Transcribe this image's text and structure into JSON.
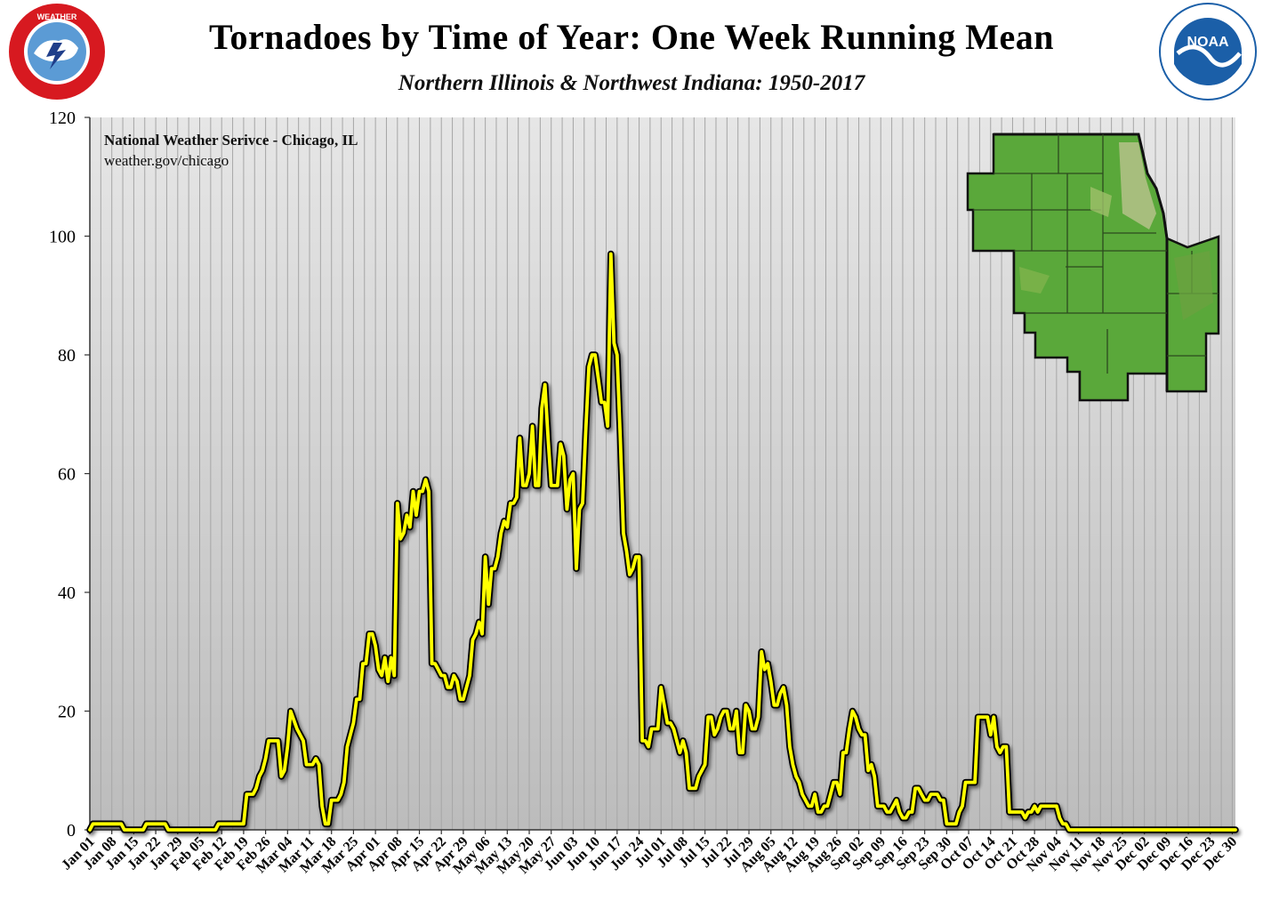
{
  "header": {
    "title": "Tornadoes by Time of Year:  One Week Running Mean",
    "subtitle": "Northern Illinois & Northwest Indiana:  1950-2017"
  },
  "logos": {
    "left": {
      "text": "NATIONAL WEATHER SERVICE",
      "icon": "nws-logo-icon"
    },
    "right": {
      "text": "NOAA",
      "ring_text": "NATIONAL OCEANIC AND ATMOSPHERIC ADMINISTRATION · U.S. DEPARTMENT OF COMMERCE",
      "icon": "noaa-logo-icon"
    }
  },
  "credit": {
    "line1": "National Weather Serivce - Chicago, IL",
    "line2": "weather.gov/chicago"
  },
  "inset_map": {
    "icon": "northern-illinois-northwest-indiana-map-icon"
  },
  "colors": {
    "line": "#ffff00",
    "line_outline": "#000000",
    "plot_bg_light": "#e4e4e4",
    "plot_bg_dark": "#bdbdbd",
    "gridline": "#a6a6a6"
  },
  "chart_data": {
    "type": "line",
    "title": "Tornadoes by Time of Year:  One Week Running Mean",
    "subtitle": "Northern Illinois & Northwest Indiana:  1950-2017",
    "xlabel": "",
    "ylabel": "",
    "ylim": [
      0,
      120
    ],
    "yticks": [
      0,
      20,
      40,
      60,
      80,
      100,
      120
    ],
    "xlim": [
      1,
      366
    ],
    "grid": true,
    "x_tick_labels": [
      "Jan 01",
      "Jan 08",
      "Jan 15",
      "Jan 22",
      "Jan 29",
      "Feb 05",
      "Feb 12",
      "Feb 19",
      "Feb 26",
      "Mar 04",
      "Mar 11",
      "Mar 18",
      "Mar 25",
      "Apr 01",
      "Apr 08",
      "Apr 15",
      "Apr 22",
      "Apr 29",
      "May 06",
      "May 13",
      "May 20",
      "May 27",
      "Jun 03",
      "Jun 10",
      "Jun 17",
      "Jun 24",
      "Jul 01",
      "Jul 08",
      "Jul 15",
      "Jul 22",
      "Jul 29",
      "Aug 05",
      "Aug 12",
      "Aug 19",
      "Aug 26",
      "Sep 02",
      "Sep 09",
      "Sep 16",
      "Sep 23",
      "Sep 30",
      "Oct 07",
      "Oct 14",
      "Oct 21",
      "Oct 28",
      "Nov 04",
      "Nov 11",
      "Nov 18",
      "Nov 25",
      "Dec 02",
      "Dec 09",
      "Dec 16",
      "Dec 23",
      "Dec 30"
    ],
    "x_tick_days": [
      1,
      8,
      15,
      22,
      29,
      36,
      43,
      50,
      57,
      64,
      71,
      78,
      85,
      92,
      99,
      106,
      113,
      120,
      127,
      134,
      141,
      148,
      155,
      162,
      169,
      176,
      183,
      190,
      197,
      204,
      211,
      218,
      225,
      232,
      239,
      246,
      253,
      260,
      267,
      274,
      281,
      288,
      295,
      302,
      309,
      316,
      323,
      330,
      337,
      344,
      351,
      358,
      365
    ],
    "series": [
      {
        "points": [
          [
            1,
            0
          ],
          [
            2,
            1
          ],
          [
            7,
            1
          ],
          [
            11,
            1
          ],
          [
            12,
            0
          ],
          [
            18,
            0
          ],
          [
            19,
            1
          ],
          [
            25,
            1
          ],
          [
            26,
            0
          ],
          [
            35,
            0
          ],
          [
            36,
            0
          ],
          [
            41,
            0
          ],
          [
            42,
            1
          ],
          [
            49,
            1
          ],
          [
            50,
            1
          ],
          [
            51,
            6
          ],
          [
            53,
            6
          ],
          [
            54,
            7
          ],
          [
            55,
            9
          ],
          [
            56,
            10
          ],
          [
            57,
            12
          ],
          [
            58,
            15
          ],
          [
            61,
            15
          ],
          [
            62,
            9
          ],
          [
            63,
            10
          ],
          [
            64,
            14
          ],
          [
            65,
            20
          ],
          [
            67,
            17
          ],
          [
            69,
            15
          ],
          [
            70,
            11
          ],
          [
            72,
            11
          ],
          [
            73,
            12
          ],
          [
            74,
            11
          ],
          [
            75,
            4
          ],
          [
            76,
            1
          ],
          [
            77,
            1
          ],
          [
            78,
            5
          ],
          [
            80,
            5
          ],
          [
            81,
            6
          ],
          [
            82,
            8
          ],
          [
            83,
            14
          ],
          [
            84,
            16
          ],
          [
            85,
            18
          ],
          [
            86,
            22
          ],
          [
            87,
            22
          ],
          [
            88,
            28
          ],
          [
            89,
            28
          ],
          [
            90,
            33
          ],
          [
            91,
            33
          ],
          [
            92,
            31
          ],
          [
            93,
            27
          ],
          [
            94,
            26
          ],
          [
            95,
            29
          ],
          [
            96,
            25
          ],
          [
            97,
            29
          ],
          [
            98,
            26
          ],
          [
            99,
            55
          ],
          [
            100,
            49
          ],
          [
            101,
            50
          ],
          [
            102,
            53
          ],
          [
            103,
            51
          ],
          [
            104,
            57
          ],
          [
            105,
            53
          ],
          [
            106,
            57
          ],
          [
            107,
            57
          ],
          [
            108,
            59
          ],
          [
            109,
            57
          ],
          [
            110,
            28
          ],
          [
            111,
            28
          ],
          [
            112,
            27
          ],
          [
            113,
            26
          ],
          [
            114,
            26
          ],
          [
            115,
            24
          ],
          [
            116,
            24
          ],
          [
            117,
            26
          ],
          [
            118,
            25
          ],
          [
            119,
            22
          ],
          [
            120,
            22
          ],
          [
            121,
            24
          ],
          [
            122,
            26
          ],
          [
            123,
            32
          ],
          [
            124,
            33
          ],
          [
            125,
            35
          ],
          [
            126,
            33
          ],
          [
            127,
            46
          ],
          [
            128,
            38
          ],
          [
            129,
            44
          ],
          [
            130,
            44
          ],
          [
            131,
            46
          ],
          [
            132,
            50
          ],
          [
            133,
            52
          ],
          [
            134,
            51
          ],
          [
            135,
            55
          ],
          [
            136,
            55
          ],
          [
            137,
            56
          ],
          [
            138,
            66
          ],
          [
            139,
            58
          ],
          [
            140,
            58
          ],
          [
            141,
            60
          ],
          [
            142,
            68
          ],
          [
            143,
            58
          ],
          [
            144,
            58
          ],
          [
            145,
            71
          ],
          [
            146,
            75
          ],
          [
            147,
            66
          ],
          [
            148,
            58
          ],
          [
            149,
            58
          ],
          [
            150,
            58
          ],
          [
            151,
            65
          ],
          [
            152,
            63
          ],
          [
            153,
            54
          ],
          [
            154,
            59
          ],
          [
            155,
            60
          ],
          [
            156,
            44
          ],
          [
            157,
            54
          ],
          [
            158,
            55
          ],
          [
            159,
            67
          ],
          [
            160,
            78
          ],
          [
            161,
            80
          ],
          [
            162,
            80
          ],
          [
            163,
            76
          ],
          [
            164,
            72
          ],
          [
            165,
            72
          ],
          [
            166,
            68
          ],
          [
            167,
            97
          ],
          [
            168,
            82
          ],
          [
            169,
            80
          ],
          [
            170,
            66
          ],
          [
            171,
            50
          ],
          [
            172,
            47
          ],
          [
            173,
            43
          ],
          [
            174,
            44
          ],
          [
            175,
            46
          ],
          [
            176,
            46
          ],
          [
            177,
            15
          ],
          [
            178,
            15
          ],
          [
            179,
            14
          ],
          [
            180,
            17
          ],
          [
            181,
            17
          ],
          [
            182,
            17
          ],
          [
            183,
            24
          ],
          [
            184,
            21
          ],
          [
            185,
            18
          ],
          [
            186,
            18
          ],
          [
            187,
            17
          ],
          [
            188,
            15
          ],
          [
            189,
            13
          ],
          [
            190,
            15
          ],
          [
            191,
            13
          ],
          [
            192,
            7
          ],
          [
            193,
            7
          ],
          [
            194,
            7
          ],
          [
            195,
            9
          ],
          [
            196,
            10
          ],
          [
            197,
            11
          ],
          [
            198,
            19
          ],
          [
            199,
            19
          ],
          [
            200,
            16
          ],
          [
            201,
            17
          ],
          [
            202,
            19
          ],
          [
            203,
            20
          ],
          [
            204,
            20
          ],
          [
            205,
            17
          ],
          [
            206,
            17
          ],
          [
            207,
            20
          ],
          [
            208,
            13
          ],
          [
            209,
            13
          ],
          [
            210,
            21
          ],
          [
            211,
            20
          ],
          [
            212,
            17
          ],
          [
            213,
            17
          ],
          [
            214,
            19
          ],
          [
            215,
            30
          ],
          [
            216,
            27
          ],
          [
            217,
            28
          ],
          [
            218,
            25
          ],
          [
            219,
            21
          ],
          [
            220,
            21
          ],
          [
            221,
            23
          ],
          [
            222,
            24
          ],
          [
            223,
            21
          ],
          [
            224,
            14
          ],
          [
            225,
            11
          ],
          [
            226,
            9
          ],
          [
            227,
            8
          ],
          [
            228,
            6
          ],
          [
            229,
            5
          ],
          [
            230,
            4
          ],
          [
            231,
            4
          ],
          [
            232,
            6
          ],
          [
            233,
            3
          ],
          [
            234,
            3
          ],
          [
            235,
            4
          ],
          [
            236,
            4
          ],
          [
            237,
            6
          ],
          [
            238,
            8
          ],
          [
            239,
            8
          ],
          [
            240,
            6
          ],
          [
            241,
            13
          ],
          [
            242,
            13
          ],
          [
            243,
            17
          ],
          [
            244,
            20
          ],
          [
            245,
            19
          ],
          [
            246,
            17
          ],
          [
            247,
            16
          ],
          [
            248,
            16
          ],
          [
            249,
            10
          ],
          [
            250,
            11
          ],
          [
            251,
            9
          ],
          [
            252,
            4
          ],
          [
            253,
            4
          ],
          [
            254,
            4
          ],
          [
            255,
            3
          ],
          [
            256,
            3
          ],
          [
            257,
            4
          ],
          [
            258,
            5
          ],
          [
            259,
            3
          ],
          [
            260,
            2
          ],
          [
            261,
            2
          ],
          [
            262,
            3
          ],
          [
            263,
            3
          ],
          [
            264,
            7
          ],
          [
            265,
            7
          ],
          [
            266,
            6
          ],
          [
            267,
            5
          ],
          [
            268,
            5
          ],
          [
            269,
            6
          ],
          [
            270,
            6
          ],
          [
            271,
            6
          ],
          [
            272,
            5
          ],
          [
            273,
            5
          ],
          [
            274,
            1
          ],
          [
            275,
            1
          ],
          [
            276,
            1
          ],
          [
            277,
            1
          ],
          [
            278,
            3
          ],
          [
            279,
            4
          ],
          [
            280,
            8
          ],
          [
            281,
            8
          ],
          [
            282,
            8
          ],
          [
            283,
            8
          ],
          [
            284,
            19
          ],
          [
            285,
            19
          ],
          [
            286,
            19
          ],
          [
            287,
            19
          ],
          [
            288,
            16
          ],
          [
            289,
            19
          ],
          [
            290,
            14
          ],
          [
            291,
            13
          ],
          [
            292,
            14
          ],
          [
            293,
            14
          ],
          [
            294,
            3
          ],
          [
            295,
            3
          ],
          [
            296,
            3
          ],
          [
            297,
            3
          ],
          [
            298,
            3
          ],
          [
            299,
            2
          ],
          [
            300,
            3
          ],
          [
            301,
            3
          ],
          [
            302,
            4
          ],
          [
            303,
            3
          ],
          [
            304,
            4
          ],
          [
            305,
            4
          ],
          [
            306,
            4
          ],
          [
            307,
            4
          ],
          [
            308,
            4
          ],
          [
            309,
            4
          ],
          [
            310,
            2
          ],
          [
            311,
            1
          ],
          [
            312,
            1
          ],
          [
            313,
            0
          ],
          [
            314,
            0
          ],
          [
            330,
            0
          ],
          [
            366,
            0
          ]
        ]
      }
    ]
  }
}
